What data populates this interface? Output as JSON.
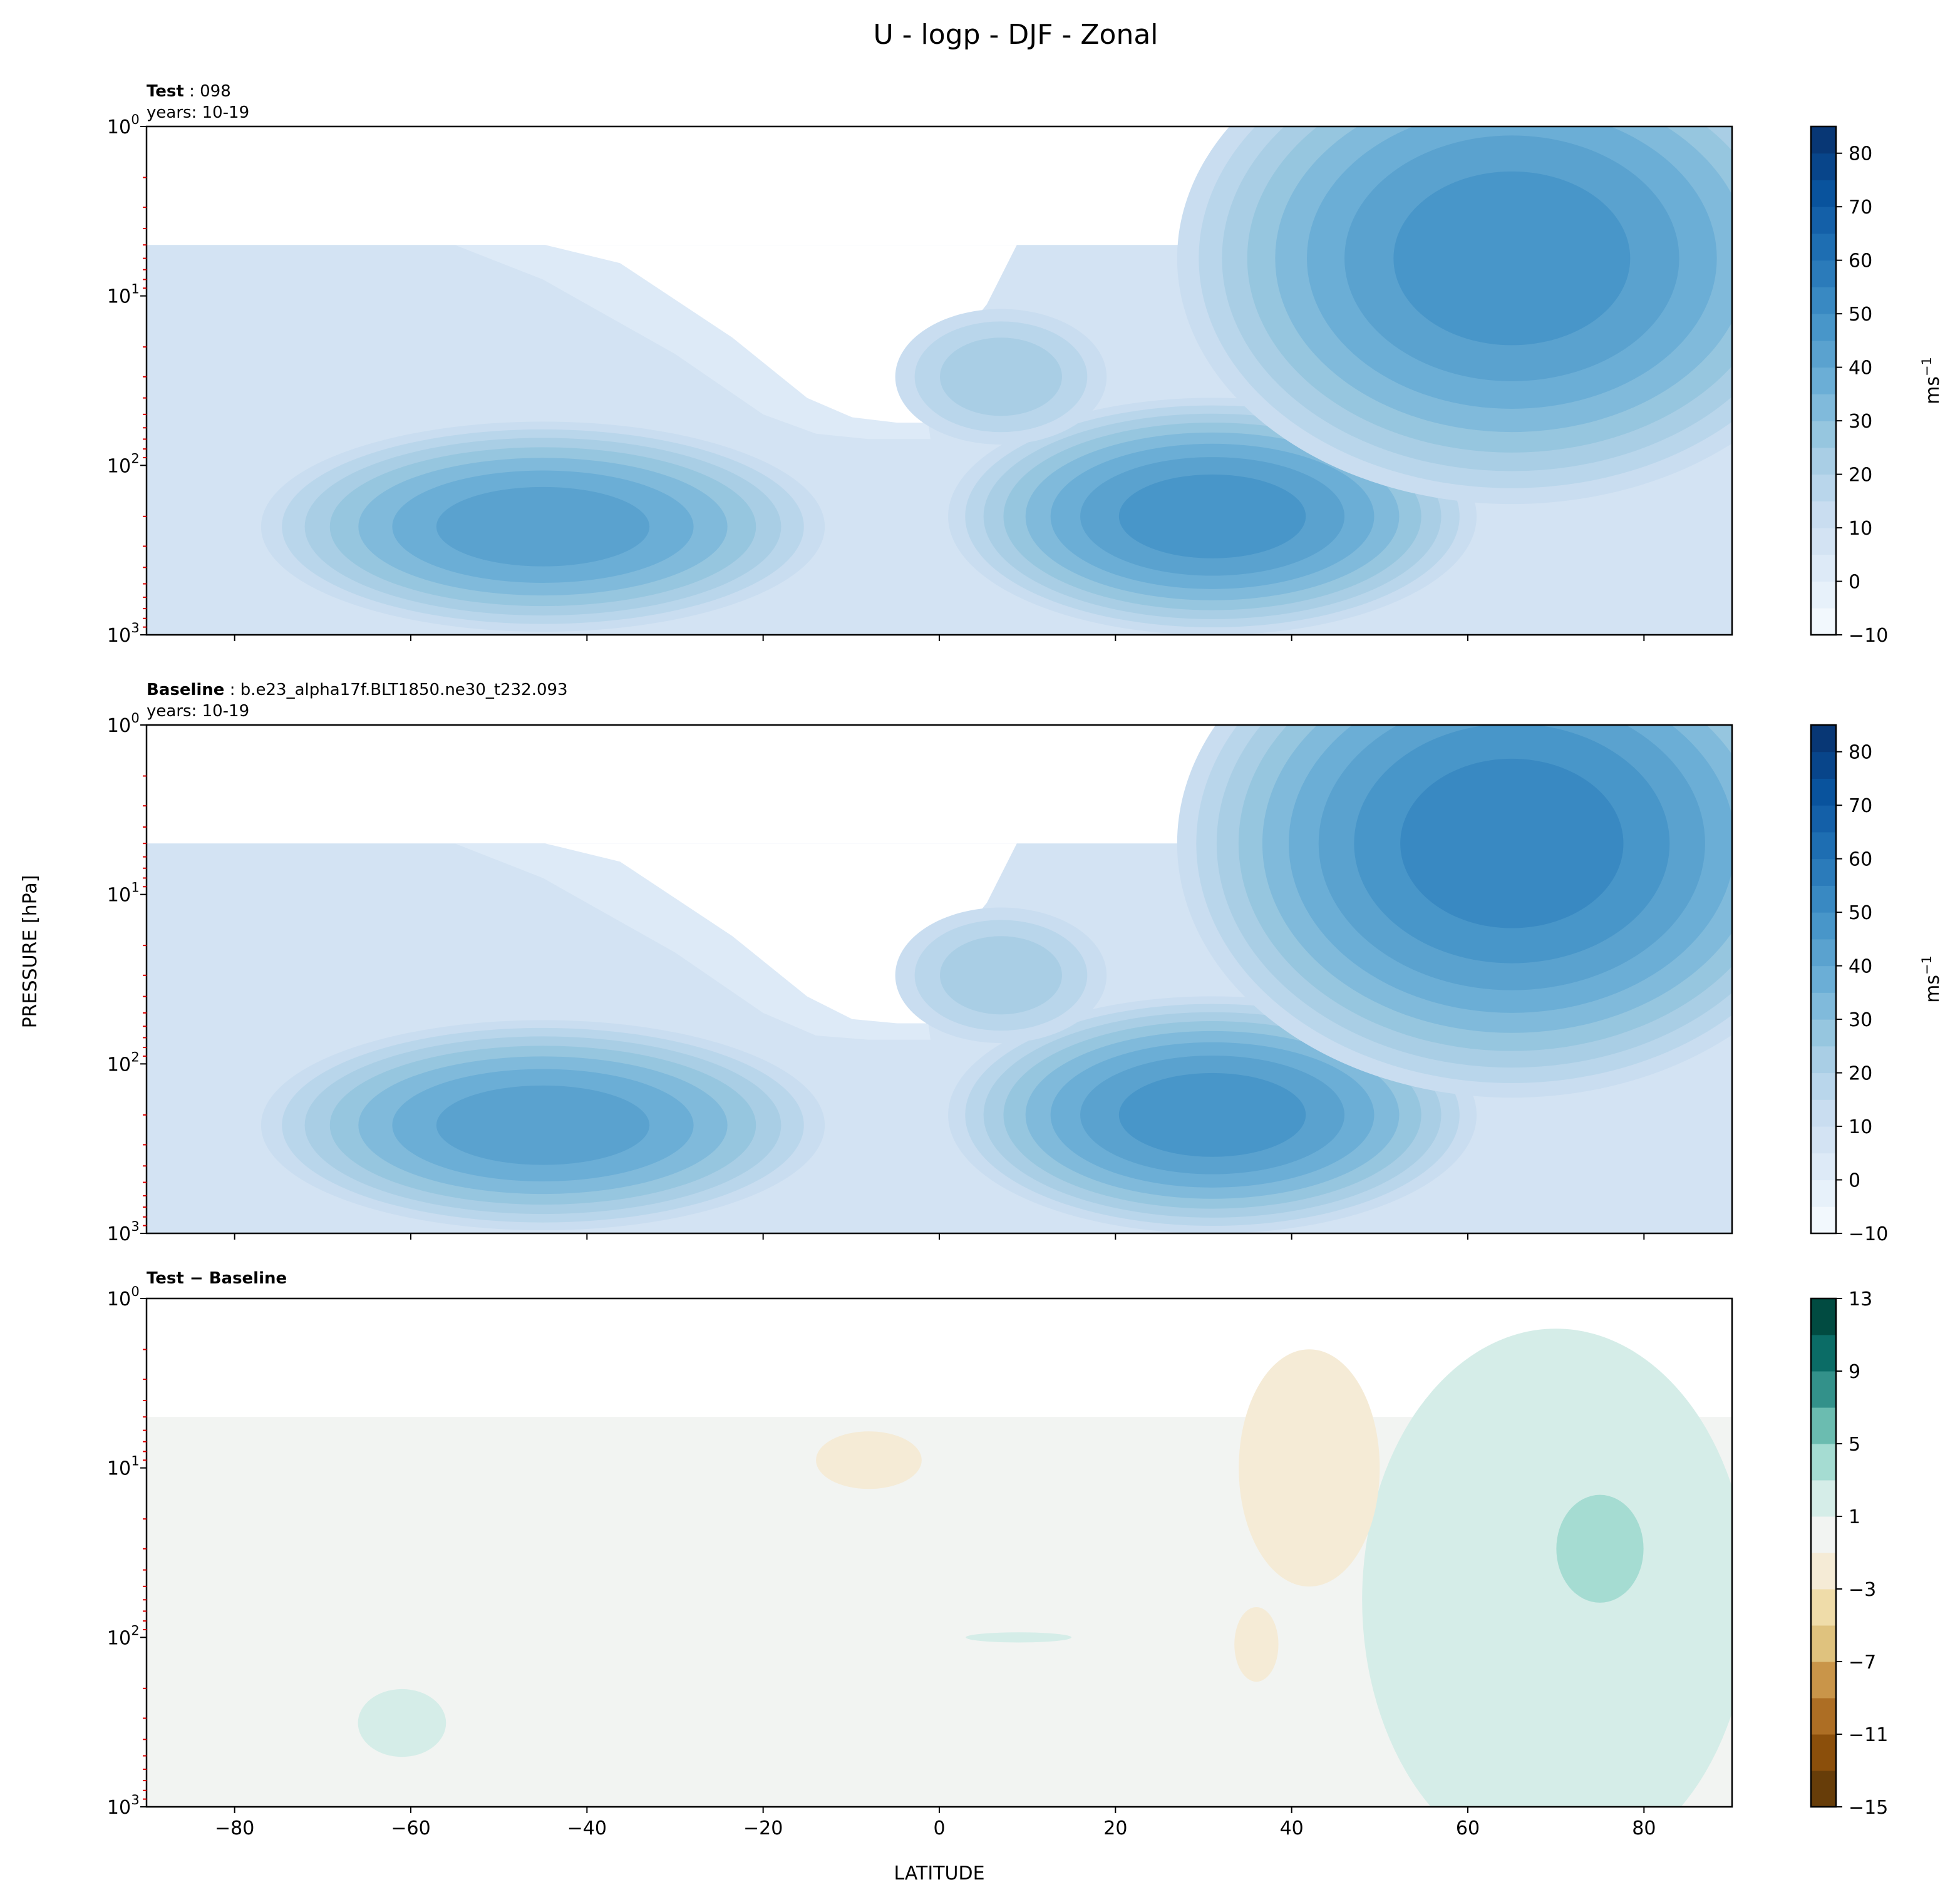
{
  "figure_title": "U - logp - DJF - Zonal",
  "ylabel": "PRESSURE [hPa]",
  "xlabel": "LATITUDE",
  "chart_data": [
    {
      "type": "contour",
      "name": "test",
      "title_bold": "Test",
      "title_rest": " : 098",
      "subtitle": "years: 10-19",
      "xlim": [
        -90,
        90
      ],
      "ylim": [
        1000,
        1
      ],
      "yscale": "log",
      "x_ticks": [
        "−80",
        "−60",
        "−40",
        "−20",
        "0",
        "20",
        "40",
        "60",
        "80"
      ],
      "x_tick_values": [
        -80,
        -60,
        -40,
        -20,
        0,
        20,
        40,
        60,
        80
      ],
      "y_ticks": [
        "10",
        "10",
        "10",
        "10"
      ],
      "y_tick_exps": [
        "0",
        "1",
        "2",
        "3"
      ],
      "y_tick_values": [
        1,
        10,
        100,
        1000
      ],
      "data_top_hPa": 5,
      "colormap": "Blues",
      "levels": [
        -10,
        -5,
        0,
        5,
        10,
        15,
        20,
        25,
        30,
        35,
        40,
        45,
        50,
        55,
        60,
        65,
        70,
        75,
        80,
        85
      ],
      "colorbar_ticks": [
        "−10",
        "0",
        "10",
        "20",
        "30",
        "40",
        "50",
        "60",
        "70",
        "80"
      ],
      "colorbar_tick_values": [
        -10,
        0,
        10,
        20,
        30,
        40,
        50,
        60,
        70,
        80
      ],
      "colorbar_label": "ms",
      "colorbar_label_exp": "−1",
      "background_value": 7,
      "easterly_region": [
        [
          -90,
          5
        ],
        [
          -55,
          5
        ],
        [
          -45,
          8
        ],
        [
          -30,
          22
        ],
        [
          -20,
          50
        ],
        [
          -14,
          65
        ],
        [
          -8,
          70
        ],
        [
          -1,
          70
        ],
        [
          -2,
          30
        ],
        [
          4,
          14
        ],
        [
          8,
          5
        ]
      ],
      "features": [
        {
          "lat": -45,
          "p": 230,
          "peak": 42,
          "base": 7,
          "rlat": 32,
          "rlog": 0.62
        },
        {
          "lat": 31,
          "p": 200,
          "peak": 47,
          "base": 7,
          "rlat": 30,
          "rlog": 0.7
        },
        {
          "lat": 65,
          "p": 6,
          "peak": 47,
          "base": 7,
          "rlat": 38,
          "rlog": 1.45
        },
        {
          "lat": 7,
          "p": 30,
          "peak": 22,
          "base": 7,
          "rlat": 12,
          "rlog": 0.4
        }
      ]
    },
    {
      "type": "contour",
      "name": "baseline",
      "title_bold": "Baseline",
      "title_rest": " : b.e23_alpha17f.BLT1850.ne30_t232.093",
      "subtitle": "years: 10-19",
      "xlim": [
        -90,
        90
      ],
      "ylim": [
        1000,
        1
      ],
      "yscale": "log",
      "x_ticks": [
        "−80",
        "−60",
        "−40",
        "−20",
        "0",
        "20",
        "40",
        "60",
        "80"
      ],
      "x_tick_values": [
        -80,
        -60,
        -40,
        -20,
        0,
        20,
        40,
        60,
        80
      ],
      "y_ticks": [
        "10",
        "10",
        "10",
        "10"
      ],
      "y_tick_exps": [
        "0",
        "1",
        "2",
        "3"
      ],
      "y_tick_values": [
        1,
        10,
        100,
        1000
      ],
      "data_top_hPa": 5,
      "colormap": "Blues",
      "levels": [
        -10,
        -5,
        0,
        5,
        10,
        15,
        20,
        25,
        30,
        35,
        40,
        45,
        50,
        55,
        60,
        65,
        70,
        75,
        80,
        85
      ],
      "colorbar_ticks": [
        "−10",
        "0",
        "10",
        "20",
        "30",
        "40",
        "50",
        "60",
        "70",
        "80"
      ],
      "colorbar_tick_values": [
        -10,
        0,
        10,
        20,
        30,
        40,
        50,
        60,
        70,
        80
      ],
      "colorbar_label": "ms",
      "colorbar_label_exp": "−1",
      "background_value": 7,
      "easterly_region": [
        [
          -90,
          5
        ],
        [
          -55,
          5
        ],
        [
          -45,
          8
        ],
        [
          -30,
          22
        ],
        [
          -20,
          50
        ],
        [
          -14,
          68
        ],
        [
          -8,
          72
        ],
        [
          -1,
          72
        ],
        [
          -2,
          30
        ],
        [
          4,
          14
        ],
        [
          8,
          5
        ]
      ],
      "features": [
        {
          "lat": -45,
          "p": 230,
          "peak": 42,
          "base": 7,
          "rlat": 32,
          "rlog": 0.62
        },
        {
          "lat": 31,
          "p": 200,
          "peak": 47,
          "base": 7,
          "rlat": 30,
          "rlog": 0.7
        },
        {
          "lat": 65,
          "p": 5,
          "peak": 52,
          "base": 7,
          "rlat": 38,
          "rlog": 1.5
        },
        {
          "lat": 7,
          "p": 30,
          "peak": 22,
          "base": 7,
          "rlat": 12,
          "rlog": 0.4
        }
      ]
    },
    {
      "type": "contour",
      "name": "difference",
      "title_bold": "Test − Baseline",
      "title_rest": "",
      "subtitle": "",
      "xlim": [
        -90,
        90
      ],
      "ylim": [
        1000,
        1
      ],
      "yscale": "log",
      "x_ticks": [
        "−80",
        "−60",
        "−40",
        "−20",
        "0",
        "20",
        "40",
        "60",
        "80"
      ],
      "x_tick_values": [
        -80,
        -60,
        -40,
        -20,
        0,
        20,
        40,
        60,
        80
      ],
      "y_ticks": [
        "10",
        "10",
        "10",
        "10"
      ],
      "y_tick_exps": [
        "0",
        "1",
        "2",
        "3"
      ],
      "y_tick_values": [
        1,
        10,
        100,
        1000
      ],
      "data_top_hPa": 5,
      "colormap": "BrBG",
      "levels": [
        -15,
        -13,
        -11,
        -9,
        -7,
        -5,
        -3,
        -1,
        1,
        3,
        5,
        7,
        9,
        11,
        13
      ],
      "colorbar_ticks": [
        "−15",
        "−11",
        "−7",
        "−3",
        "1",
        "5",
        "9",
        "13"
      ],
      "colorbar_tick_values": [
        -15,
        -11,
        -7,
        -3,
        1,
        5,
        9,
        13
      ],
      "colorbar_label": "",
      "colorbar_label_exp": "",
      "band_colors": [
        "#673d09",
        "#8b4f0b",
        "#ad6e24",
        "#c99549",
        "#dfc27e",
        "#efdca9",
        "#f5ebd6",
        "#f2f4f2",
        "#d5ede8",
        "#a5dcd2",
        "#6bbcb0",
        "#33918a",
        "#0b6c66",
        "#014b41"
      ],
      "background_value": 0,
      "features": [
        {
          "lat": 70,
          "p": 60,
          "peak": 2,
          "base": 0,
          "rlat": 22,
          "rlog": 1.6
        },
        {
          "lat": 75,
          "p": 30,
          "peak": 4,
          "base": 0,
          "rlat": 7,
          "rlog": 0.45
        },
        {
          "lat": 42,
          "p": 10,
          "peak": -2,
          "base": 0,
          "rlat": 8,
          "rlog": 0.7
        },
        {
          "lat": -8,
          "p": 9,
          "peak": -2,
          "base": 0,
          "rlat": 6,
          "rlog": 0.17
        },
        {
          "lat": 36,
          "p": 110,
          "peak": -2,
          "base": 0,
          "rlat": 2.5,
          "rlog": 0.22
        },
        {
          "lat": -61,
          "p": 320,
          "peak": 2,
          "base": 0,
          "rlat": 5,
          "rlog": 0.2
        },
        {
          "lat": 9,
          "p": 100,
          "peak": 2,
          "base": 0,
          "rlat": 6,
          "rlog": 0.03
        }
      ]
    }
  ]
}
